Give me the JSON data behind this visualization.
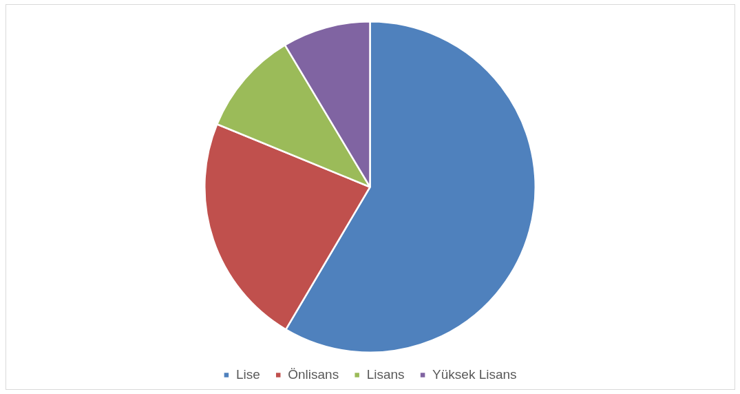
{
  "chart_data": {
    "type": "pie",
    "categories": [
      "Lise",
      "Önlisans",
      "Lisans",
      "Yüksek Lisans"
    ],
    "values": [
      58.5,
      22.7,
      10.2,
      8.6
    ],
    "colors": [
      "#4f81bd",
      "#c0504d",
      "#9bbb59",
      "#8064a2"
    ],
    "legend": "bottom"
  }
}
